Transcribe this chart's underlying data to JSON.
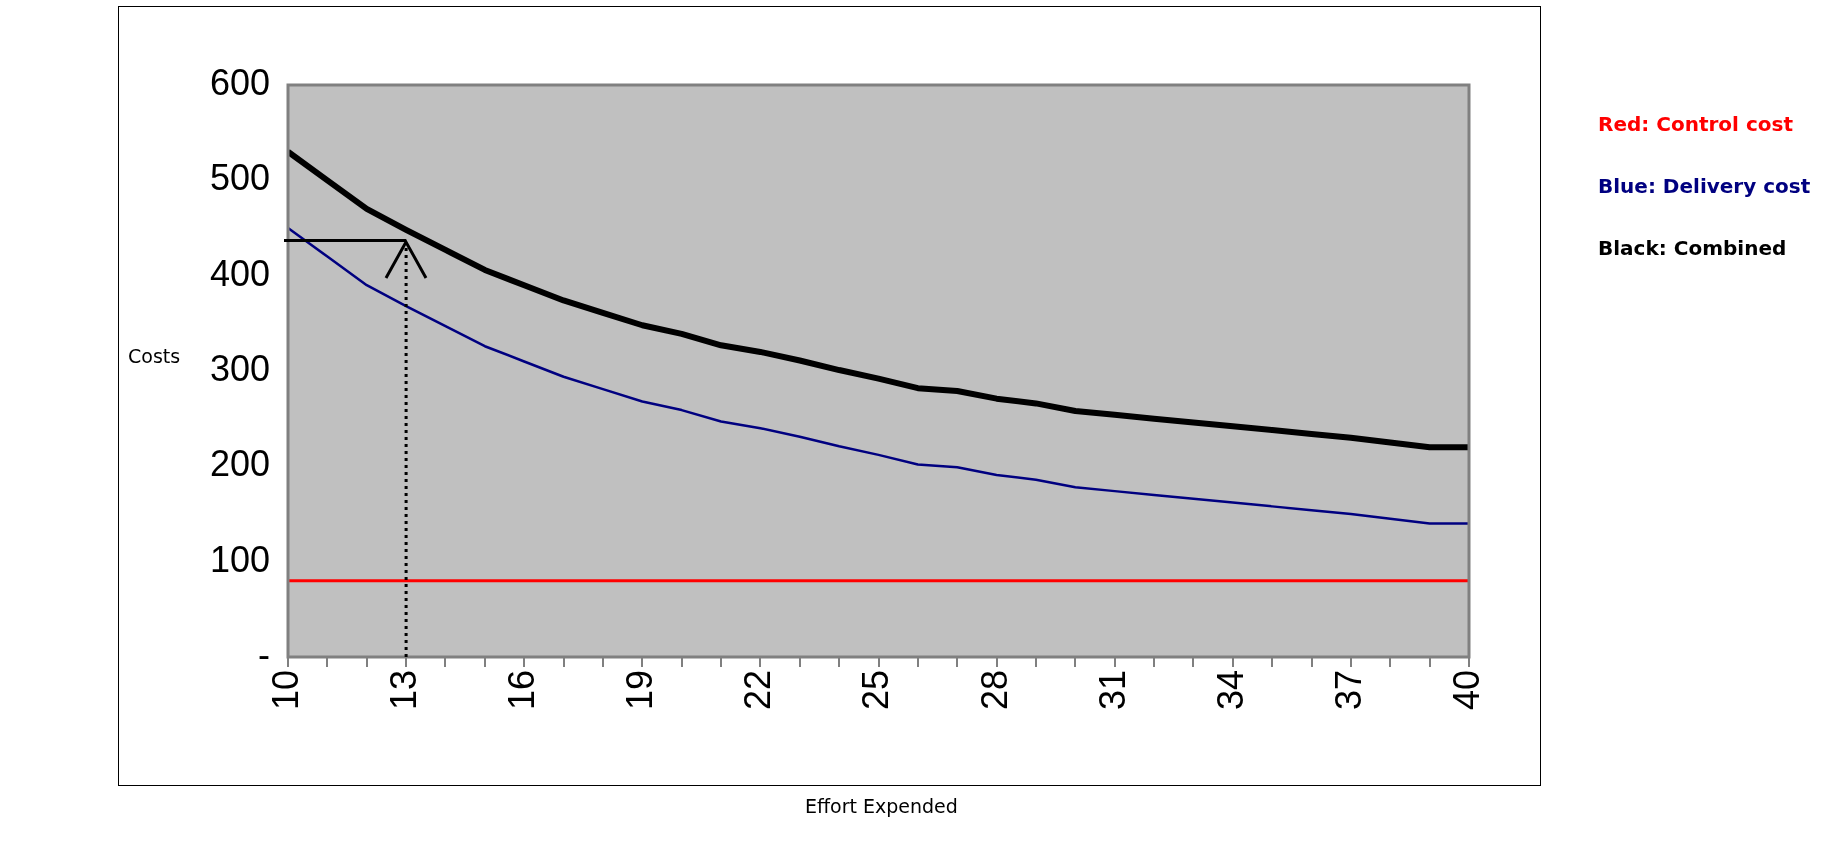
{
  "chart_data": {
    "type": "line",
    "xlabel": "Effort Expended",
    "ylabel": "Costs",
    "x": [
      10,
      11,
      12,
      13,
      14,
      15,
      16,
      17,
      18,
      19,
      20,
      21,
      22,
      23,
      24,
      25,
      26,
      27,
      28,
      29,
      30,
      31,
      32,
      33,
      34,
      35,
      36,
      37,
      38,
      39,
      40
    ],
    "series": [
      {
        "name": "Red: Control cost",
        "color": "#ff0000",
        "values": [
          80,
          80,
          80,
          80,
          80,
          80,
          80,
          80,
          80,
          80,
          80,
          80,
          80,
          80,
          80,
          80,
          80,
          80,
          80,
          80,
          80,
          80,
          80,
          80,
          80,
          80,
          80,
          80,
          80,
          80,
          80
        ]
      },
      {
        "name": "Blue: Delivery cost",
        "color": "#000080",
        "values": [
          450,
          420,
          390,
          368,
          347,
          326,
          310,
          294,
          281,
          268,
          259,
          247,
          240,
          231,
          221,
          212,
          202,
          199,
          191,
          186,
          178,
          174,
          170,
          166,
          162,
          158,
          154,
          150,
          145,
          140,
          140
        ]
      },
      {
        "name": "Black: Combined",
        "color": "#000000",
        "values": [
          530,
          500,
          470,
          448,
          427,
          406,
          390,
          374,
          361,
          348,
          339,
          327,
          320,
          311,
          301,
          292,
          282,
          279,
          271,
          266,
          258,
          254,
          250,
          246,
          242,
          238,
          234,
          230,
          225,
          220,
          220
        ]
      }
    ],
    "xlim": [
      10,
      40
    ],
    "xticks": [
      10,
      {
        "value": 11,
        "label": null
      },
      {
        "value": 12,
        "label": null
      },
      13,
      {
        "value": 14,
        "label": null
      },
      {
        "value": 15,
        "label": null
      },
      16,
      {
        "value": 17,
        "label": null
      },
      {
        "value": 18,
        "label": null
      },
      19,
      {
        "value": 20,
        "label": null
      },
      {
        "value": 21,
        "label": null
      },
      22,
      {
        "value": 23,
        "label": null
      },
      {
        "value": 24,
        "label": null
      },
      25,
      {
        "value": 26,
        "label": null
      },
      {
        "value": 27,
        "label": null
      },
      28,
      {
        "value": 29,
        "label": null
      },
      {
        "value": 30,
        "label": null
      },
      31,
      {
        "value": 32,
        "label": null
      },
      {
        "value": 33,
        "label": null
      },
      34,
      {
        "value": 35,
        "label": null
      },
      {
        "value": 36,
        "label": null
      },
      37,
      {
        "value": 38,
        "label": null
      },
      {
        "value": 39,
        "label": null
      },
      40
    ],
    "ylim": [
      0,
      600
    ],
    "yticks": [
      {
        "value": 0,
        "label": "-"
      },
      100,
      200,
      300,
      400,
      500,
      600
    ],
    "ref_lines": [
      {
        "axis": "x",
        "value": 13,
        "label": null,
        "color": "#000000",
        "line_style": "dotted"
      },
      {
        "axis": "y",
        "value": 437,
        "label": null,
        "color": "#000000",
        "line_style": "solid"
      }
    ],
    "legend": "right",
    "marker": "none",
    "line_style": "solid"
  }
}
